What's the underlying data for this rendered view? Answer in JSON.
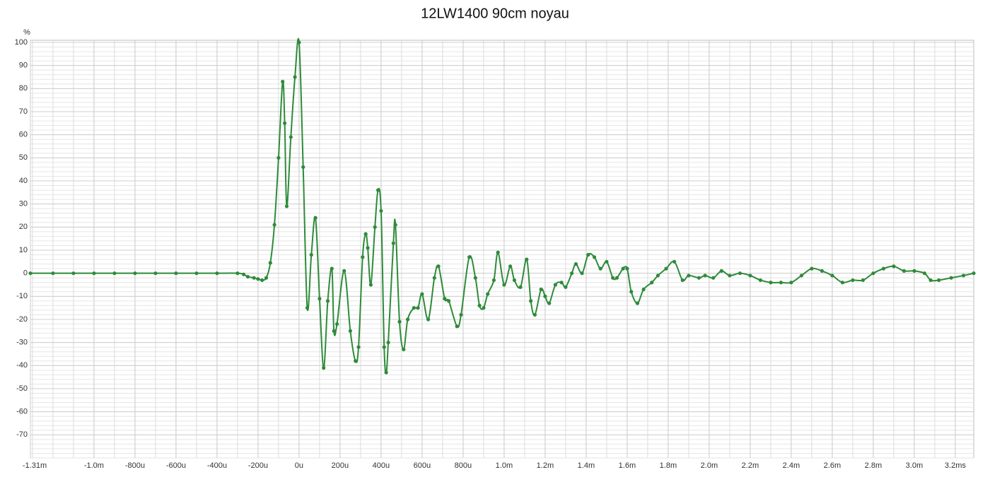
{
  "chart_data": {
    "type": "line",
    "title": "12LW1400 90cm noyau",
    "ylabel": "%",
    "series": [
      {
        "name": "12LW1400 90cm noyau",
        "color": "#2e8b3a",
        "x": [
          -1.31,
          -1.2,
          -1.1,
          -1.0,
          -0.9,
          -0.8,
          -0.7,
          -0.6,
          -0.5,
          -0.4,
          -0.3,
          -0.27,
          -0.25,
          -0.22,
          -0.2,
          -0.18,
          -0.16,
          -0.14,
          -0.12,
          -0.1,
          -0.08,
          -0.07,
          -0.06,
          -0.04,
          -0.02,
          0,
          0.02,
          0.04,
          0.06,
          0.08,
          0.1,
          0.12,
          0.14,
          0.16,
          0.17,
          0.185,
          0.22,
          0.25,
          0.275,
          0.29,
          0.31,
          0.325,
          0.335,
          0.35,
          0.37,
          0.385,
          0.4,
          0.415,
          0.425,
          0.435,
          0.46,
          0.47,
          0.49,
          0.51,
          0.53,
          0.56,
          0.58,
          0.6,
          0.63,
          0.66,
          0.68,
          0.71,
          0.73,
          0.77,
          0.79,
          0.83,
          0.86,
          0.88,
          0.9,
          0.92,
          0.95,
          0.97,
          1.0,
          1.03,
          1.05,
          1.08,
          1.11,
          1.13,
          1.15,
          1.18,
          1.2,
          1.22,
          1.25,
          1.28,
          1.3,
          1.33,
          1.35,
          1.38,
          1.41,
          1.44,
          1.47,
          1.5,
          1.53,
          1.55,
          1.58,
          1.6,
          1.62,
          1.65,
          1.68,
          1.72,
          1.75,
          1.79,
          1.83,
          1.87,
          1.9,
          1.95,
          1.98,
          2.02,
          2.06,
          2.1,
          2.15,
          2.2,
          2.25,
          2.3,
          2.35,
          2.4,
          2.45,
          2.5,
          2.55,
          2.6,
          2.65,
          2.7,
          2.75,
          2.8,
          2.85,
          2.9,
          2.95,
          3.0,
          3.05,
          3.08,
          3.12,
          3.18,
          3.24,
          3.29
        ],
        "values": [
          0,
          0,
          0,
          0,
          0,
          0,
          0,
          0,
          0,
          0,
          0,
          -0.5,
          -1.5,
          -2,
          -2.5,
          -3,
          -2,
          4.5,
          21,
          50,
          83,
          65,
          29,
          59,
          85,
          100,
          46,
          -15,
          8,
          24,
          -11,
          -41,
          -12,
          2,
          -25,
          -22,
          1,
          -25,
          -38,
          -32,
          7,
          17,
          11,
          -5,
          20,
          36,
          27,
          -32,
          -43,
          -30,
          13,
          21,
          -21,
          -33,
          -20,
          -15,
          -15,
          -9,
          -20,
          -2,
          3,
          -11,
          -12,
          -23,
          -18,
          7,
          -2,
          -14,
          -15,
          -9,
          -3,
          9,
          -5,
          3,
          -3,
          -6,
          6,
          -12,
          -18,
          -7,
          -10,
          -13,
          -5,
          -4,
          -6,
          0,
          4,
          0,
          8,
          7,
          2,
          5,
          -2,
          -2,
          2,
          2,
          -8,
          -13,
          -7,
          -4,
          -1,
          2,
          5,
          -3,
          -1,
          -2,
          -1,
          -2,
          1,
          -1,
          0,
          -1,
          -3,
          -4,
          -4,
          -4,
          -1,
          2,
          1,
          -1,
          -4,
          -3,
          -3,
          0,
          2,
          3,
          1,
          1,
          0,
          -3,
          -3,
          -2,
          -1,
          0
        ]
      }
    ],
    "xlim": [
      -1.31,
      3.29
    ],
    "xticks": [
      {
        "value": -1.31,
        "label": "-1.31m"
      },
      {
        "value": -1.0,
        "label": "-1.0m"
      },
      {
        "value": -0.8,
        "label": "-800u"
      },
      {
        "value": -0.6,
        "label": "-600u"
      },
      {
        "value": -0.4,
        "label": "-400u"
      },
      {
        "value": -0.2,
        "label": "-200u"
      },
      {
        "value": 0,
        "label": "0u"
      },
      {
        "value": 0.2,
        "label": "200u"
      },
      {
        "value": 0.4,
        "label": "400u"
      },
      {
        "value": 0.6,
        "label": "600u"
      },
      {
        "value": 0.8,
        "label": "800u"
      },
      {
        "value": 1.0,
        "label": "1.0m"
      },
      {
        "value": 1.2,
        "label": "1.2m"
      },
      {
        "value": 1.4,
        "label": "1.4m"
      },
      {
        "value": 1.6,
        "label": "1.6m"
      },
      {
        "value": 1.8,
        "label": "1.8m"
      },
      {
        "value": 2.0,
        "label": "2.0m"
      },
      {
        "value": 2.2,
        "label": "2.2m"
      },
      {
        "value": 2.4,
        "label": "2.4m"
      },
      {
        "value": 2.6,
        "label": "2.6m"
      },
      {
        "value": 2.8,
        "label": "2.8m"
      },
      {
        "value": 3.0,
        "label": "3.0m"
      },
      {
        "value": 3.2,
        "label": "3.2ms"
      }
    ],
    "xminor": 0.1,
    "ylim": [
      -80,
      100
    ],
    "yticks": [
      100,
      90,
      80,
      70,
      60,
      50,
      40,
      30,
      20,
      10,
      0,
      -10,
      -20,
      -30,
      -40,
      -50,
      -60,
      -70
    ],
    "yminor": 2,
    "grid": true
  }
}
